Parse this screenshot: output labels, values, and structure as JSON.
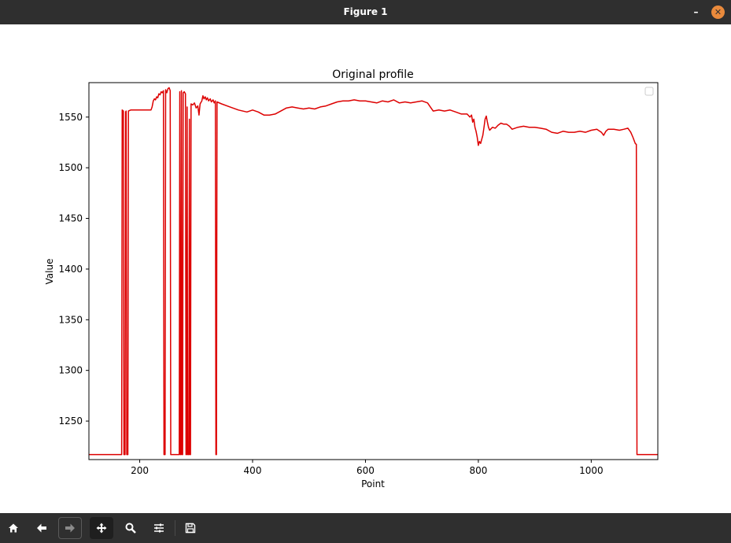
{
  "window": {
    "title": "Figure 1"
  },
  "toolbar": {
    "buttons": [
      {
        "id": "home",
        "icon": "home-icon"
      },
      {
        "id": "back",
        "icon": "arrow-left-icon"
      },
      {
        "id": "forward",
        "icon": "arrow-right-icon"
      },
      {
        "id": "pan",
        "icon": "move-icon"
      },
      {
        "id": "zoom",
        "icon": "magnifier-icon"
      },
      {
        "id": "configure",
        "icon": "sliders-icon"
      },
      {
        "id": "save",
        "icon": "floppy-disk-icon"
      }
    ]
  },
  "colors": {
    "line": "#dd0000",
    "titlebar": "#2f2f2f",
    "close": "#e98a3c"
  },
  "chart_data": {
    "type": "line",
    "title": "Original profile",
    "xlabel": "Point",
    "ylabel": "Value",
    "xlim": [
      110,
      1118
    ],
    "ylim": [
      1212,
      1584
    ],
    "xticks": [
      200,
      400,
      600,
      800,
      1000
    ],
    "yticks": [
      1250,
      1300,
      1350,
      1400,
      1450,
      1500,
      1550
    ],
    "grid": false,
    "legend": "top-right (empty)",
    "series": [
      {
        "color": "#dd0000",
        "points": [
          [
            110,
            1217
          ],
          [
            168,
            1217
          ],
          [
            169,
            1557
          ],
          [
            171,
            1556
          ],
          [
            172,
            1217
          ],
          [
            174,
            1217
          ],
          [
            175,
            1555
          ],
          [
            176,
            1556
          ],
          [
            177,
            1217
          ],
          [
            179,
            1217
          ],
          [
            180,
            1556
          ],
          [
            184,
            1557
          ],
          [
            192,
            1557
          ],
          [
            200,
            1557
          ],
          [
            210,
            1557
          ],
          [
            220,
            1557
          ],
          [
            222,
            1560
          ],
          [
            224,
            1566
          ],
          [
            226,
            1568
          ],
          [
            228,
            1567
          ],
          [
            230,
            1570
          ],
          [
            232,
            1569
          ],
          [
            234,
            1573
          ],
          [
            236,
            1572
          ],
          [
            238,
            1575
          ],
          [
            240,
            1574
          ],
          [
            242,
            1576
          ],
          [
            243,
            1217
          ],
          [
            245,
            1217
          ],
          [
            246,
            1577
          ],
          [
            248,
            1574
          ],
          [
            250,
            1578
          ],
          [
            252,
            1579
          ],
          [
            254,
            1576
          ],
          [
            255,
            1217
          ],
          [
            256,
            1217
          ],
          [
            270,
            1217
          ],
          [
            271,
            1575
          ],
          [
            272,
            1217
          ],
          [
            273,
            1217
          ],
          [
            274,
            1576
          ],
          [
            275,
            1217
          ],
          [
            276,
            1217
          ],
          [
            277,
            1574
          ],
          [
            279,
            1575
          ],
          [
            281,
            1573
          ],
          [
            282,
            1217
          ],
          [
            283,
            1217
          ],
          [
            284,
            1560
          ],
          [
            285,
            1217
          ],
          [
            287,
            1217
          ],
          [
            288,
            1548
          ],
          [
            289,
            1217
          ],
          [
            290,
            1217
          ],
          [
            291,
            1563
          ],
          [
            294,
            1562
          ],
          [
            297,
            1564
          ],
          [
            300,
            1559
          ],
          [
            303,
            1561
          ],
          [
            305,
            1552
          ],
          [
            307,
            1563
          ],
          [
            310,
            1566
          ],
          [
            312,
            1571
          ],
          [
            314,
            1568
          ],
          [
            316,
            1570
          ],
          [
            318,
            1567
          ],
          [
            320,
            1569
          ],
          [
            322,
            1566
          ],
          [
            325,
            1568
          ],
          [
            327,
            1565
          ],
          [
            330,
            1567
          ],
          [
            332,
            1564
          ],
          [
            334,
            1566
          ],
          [
            335,
            1217
          ],
          [
            336,
            1217
          ],
          [
            337,
            1565
          ],
          [
            345,
            1563
          ],
          [
            360,
            1560
          ],
          [
            375,
            1557
          ],
          [
            390,
            1555
          ],
          [
            400,
            1557
          ],
          [
            410,
            1555
          ],
          [
            420,
            1552
          ],
          [
            430,
            1552
          ],
          [
            440,
            1553
          ],
          [
            450,
            1556
          ],
          [
            460,
            1559
          ],
          [
            470,
            1560
          ],
          [
            480,
            1559
          ],
          [
            490,
            1558
          ],
          [
            500,
            1559
          ],
          [
            510,
            1558
          ],
          [
            520,
            1560
          ],
          [
            530,
            1561
          ],
          [
            540,
            1563
          ],
          [
            550,
            1565
          ],
          [
            560,
            1566
          ],
          [
            570,
            1566
          ],
          [
            580,
            1567
          ],
          [
            590,
            1566
          ],
          [
            600,
            1566
          ],
          [
            610,
            1565
          ],
          [
            620,
            1564
          ],
          [
            630,
            1566
          ],
          [
            640,
            1565
          ],
          [
            650,
            1567
          ],
          [
            660,
            1564
          ],
          [
            670,
            1565
          ],
          [
            680,
            1564
          ],
          [
            690,
            1565
          ],
          [
            700,
            1566
          ],
          [
            710,
            1564
          ],
          [
            715,
            1560
          ],
          [
            720,
            1556
          ],
          [
            730,
            1557
          ],
          [
            740,
            1556
          ],
          [
            750,
            1557
          ],
          [
            760,
            1555
          ],
          [
            770,
            1553
          ],
          [
            780,
            1553
          ],
          [
            785,
            1550
          ],
          [
            788,
            1552
          ],
          [
            790,
            1545
          ],
          [
            792,
            1548
          ],
          [
            794,
            1540
          ],
          [
            796,
            1536
          ],
          [
            798,
            1530
          ],
          [
            800,
            1522
          ],
          [
            802,
            1526
          ],
          [
            804,
            1524
          ],
          [
            806,
            1528
          ],
          [
            808,
            1532
          ],
          [
            810,
            1540
          ],
          [
            812,
            1548
          ],
          [
            814,
            1551
          ],
          [
            816,
            1545
          ],
          [
            818,
            1540
          ],
          [
            820,
            1537
          ],
          [
            825,
            1540
          ],
          [
            830,
            1539
          ],
          [
            835,
            1542
          ],
          [
            840,
            1544
          ],
          [
            845,
            1543
          ],
          [
            850,
            1543
          ],
          [
            855,
            1541
          ],
          [
            860,
            1538
          ],
          [
            865,
            1539
          ],
          [
            870,
            1540
          ],
          [
            880,
            1541
          ],
          [
            890,
            1540
          ],
          [
            900,
            1540
          ],
          [
            910,
            1539
          ],
          [
            920,
            1538
          ],
          [
            930,
            1535
          ],
          [
            940,
            1534
          ],
          [
            950,
            1536
          ],
          [
            960,
            1535
          ],
          [
            970,
            1535
          ],
          [
            980,
            1536
          ],
          [
            990,
            1535
          ],
          [
            1000,
            1537
          ],
          [
            1010,
            1538
          ],
          [
            1018,
            1535
          ],
          [
            1022,
            1532
          ],
          [
            1026,
            1536
          ],
          [
            1030,
            1538
          ],
          [
            1040,
            1538
          ],
          [
            1050,
            1537
          ],
          [
            1058,
            1538
          ],
          [
            1065,
            1539
          ],
          [
            1070,
            1535
          ],
          [
            1074,
            1530
          ],
          [
            1078,
            1524
          ],
          [
            1080,
            1523
          ],
          [
            1081,
            1217
          ],
          [
            1118,
            1217
          ]
        ]
      }
    ]
  }
}
